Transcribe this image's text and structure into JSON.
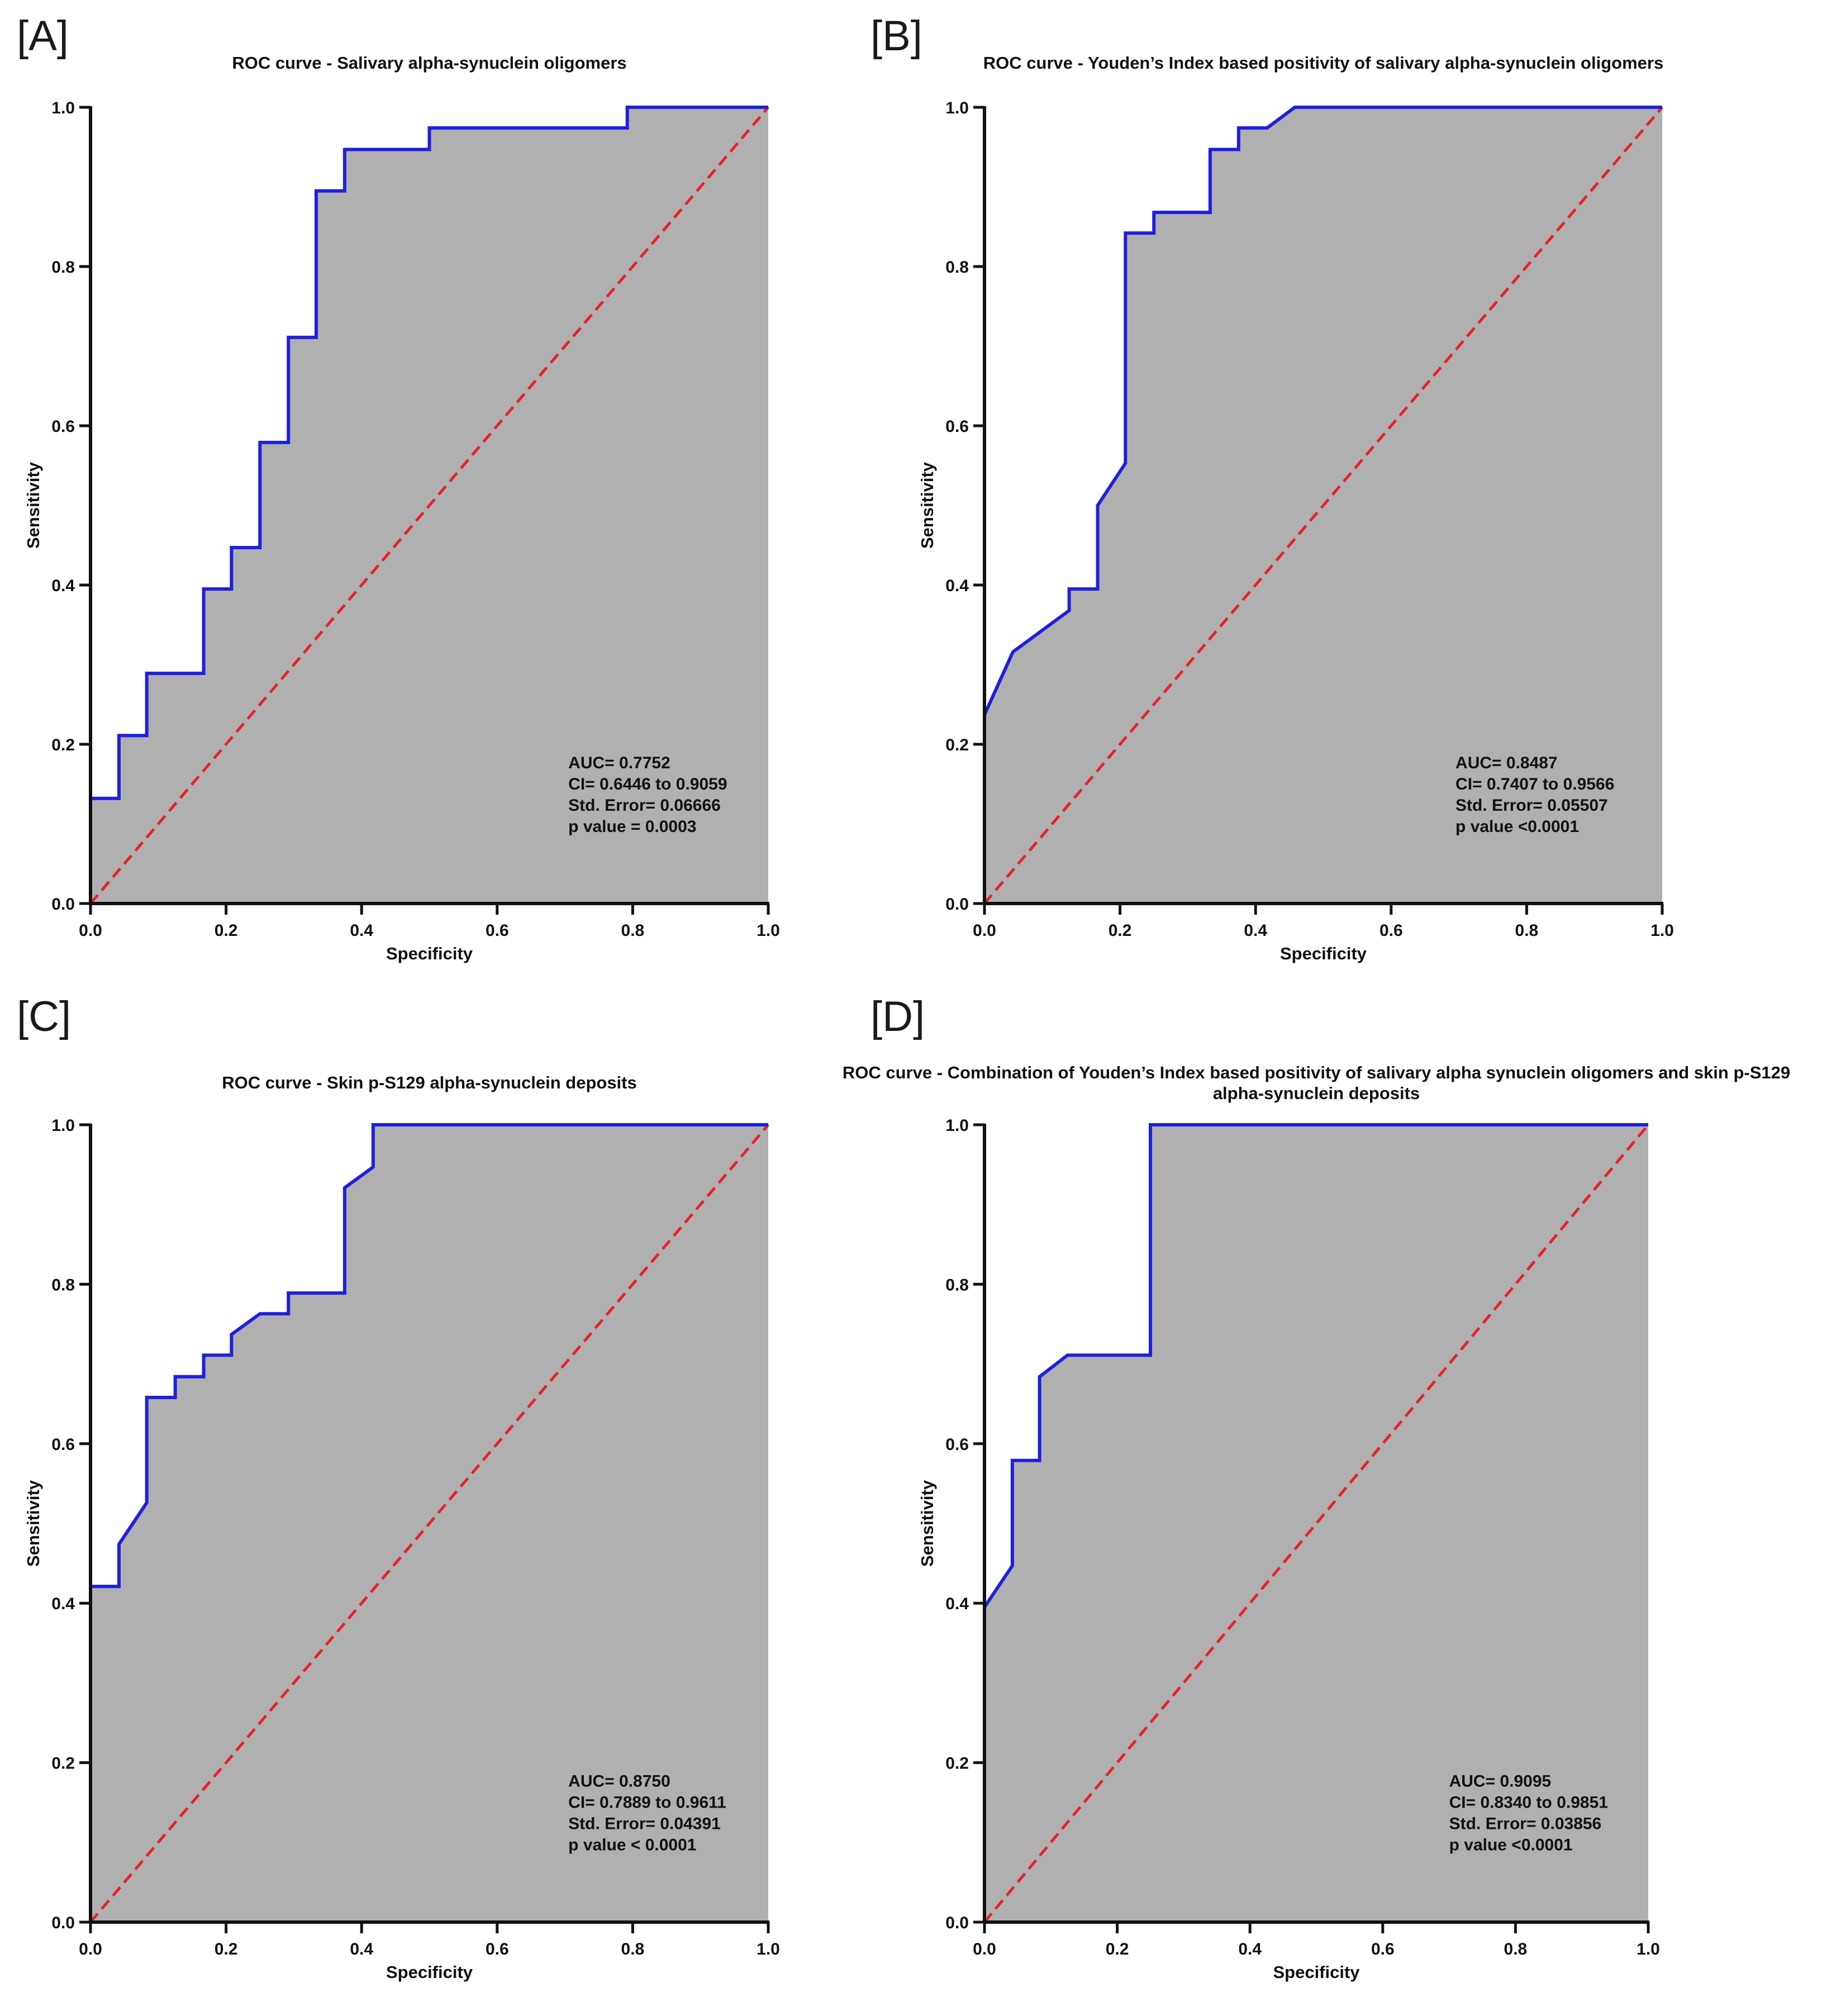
{
  "chart_data": [
    {
      "type": "line",
      "panel_label": "[A]",
      "title": "ROC curve - Salivary alpha-synuclein oligomers",
      "title_line2": "",
      "xlabel": "Specificity",
      "ylabel": "Sensitivity",
      "xlim": [
        0,
        1
      ],
      "ylim": [
        0,
        1
      ],
      "xticks": [
        "0.0",
        "0.2",
        "0.4",
        "0.6",
        "0.8",
        "1.0"
      ],
      "yticks": [
        "0.0",
        "0.2",
        "0.4",
        "0.6",
        "0.8",
        "1.0"
      ],
      "grid": false,
      "curve_color": "#1f1fe0",
      "reference_color": "#e8222b",
      "fill_color": "#b0b0b0",
      "annotation": [
        "AUC= 0.7752",
        "CI= 0.6446 to 0.9059",
        "Std. Error= 0.06666",
        "p value = 0.0003"
      ],
      "x": [
        0,
        0,
        0.042,
        0.042,
        0.083,
        0.083,
        0.167,
        0.167,
        0.208,
        0.208,
        0.25,
        0.25,
        0.292,
        0.292,
        0.333,
        0.333,
        0.375,
        0.375,
        0.5,
        0.5,
        0.792,
        0.792,
        1
      ],
      "y": [
        0,
        0.132,
        0.132,
        0.211,
        0.211,
        0.289,
        0.289,
        0.395,
        0.395,
        0.447,
        0.447,
        0.579,
        0.579,
        0.711,
        0.711,
        0.895,
        0.895,
        0.947,
        0.947,
        0.974,
        0.974,
        1,
        1
      ]
    },
    {
      "type": "line",
      "panel_label": "[B]",
      "title": "ROC curve - Youden’s Index based positivity of salivary alpha-synuclein oligomers",
      "title_line2": "",
      "xlabel": "Specificity",
      "ylabel": "Sensitivity",
      "xlim": [
        0,
        1
      ],
      "ylim": [
        0,
        1
      ],
      "xticks": [
        "0.0",
        "0.2",
        "0.4",
        "0.6",
        "0.8",
        "1.0"
      ],
      "yticks": [
        "0.0",
        "0.2",
        "0.4",
        "0.6",
        "0.8",
        "1.0"
      ],
      "grid": false,
      "curve_color": "#1f1fe0",
      "reference_color": "#e8222b",
      "fill_color": "#b0b0b0",
      "annotation": [
        "AUC= 0.8487",
        "CI= 0.7407 to 0.9566",
        "Std. Error= 0.05507",
        "p value <0.0001"
      ],
      "x": [
        0,
        0,
        0.042,
        0.125,
        0.125,
        0.167,
        0.167,
        0.208,
        0.208,
        0.25,
        0.25,
        0.333,
        0.333,
        0.375,
        0.375,
        0.417,
        0.458,
        1
      ],
      "y": [
        0,
        0.237,
        0.316,
        0.368,
        0.395,
        0.395,
        0.5,
        0.553,
        0.842,
        0.842,
        0.868,
        0.868,
        0.947,
        0.947,
        0.974,
        0.974,
        1,
        1
      ]
    },
    {
      "type": "line",
      "panel_label": "[C]",
      "title": "ROC curve - Skin p-S129 alpha-synuclein deposits",
      "title_line2": "",
      "xlabel": "Specificity",
      "ylabel": "Sensitivity",
      "xlim": [
        0,
        1
      ],
      "ylim": [
        0,
        1
      ],
      "xticks": [
        "0.0",
        "0.2",
        "0.4",
        "0.6",
        "0.8",
        "1.0"
      ],
      "yticks": [
        "0.0",
        "0.2",
        "0.4",
        "0.6",
        "0.8",
        "1.0"
      ],
      "grid": false,
      "curve_color": "#1f1fe0",
      "reference_color": "#e8222b",
      "fill_color": "#b0b0b0",
      "annotation": [
        "AUC= 0.8750",
        "CI= 0.7889 to 0.9611",
        "Std. Error= 0.04391",
        "p value < 0.0001"
      ],
      "x": [
        0,
        0,
        0.042,
        0.042,
        0.083,
        0.083,
        0.125,
        0.125,
        0.167,
        0.167,
        0.208,
        0.208,
        0.25,
        0.292,
        0.292,
        0.375,
        0.375,
        0.417,
        0.417,
        1
      ],
      "y": [
        0,
        0.421,
        0.421,
        0.474,
        0.526,
        0.658,
        0.658,
        0.684,
        0.684,
        0.711,
        0.711,
        0.737,
        0.763,
        0.763,
        0.789,
        0.789,
        0.921,
        0.947,
        1,
        1
      ]
    },
    {
      "type": "line",
      "panel_label": "[D]",
      "title": "ROC curve - Combination of Youden’s Index based positivity of salivary alpha synuclein oligomers and skin p-S129",
      "title_line2": "alpha-synuclein deposits",
      "xlabel": "Specificity",
      "ylabel": "Sensitivity",
      "xlim": [
        0,
        1
      ],
      "ylim": [
        0,
        1
      ],
      "xticks": [
        "0.0",
        "0.2",
        "0.4",
        "0.6",
        "0.8",
        "1.0"
      ],
      "yticks": [
        "0.0",
        "0.2",
        "0.4",
        "0.6",
        "0.8",
        "1.0"
      ],
      "grid": false,
      "curve_color": "#1f1fe0",
      "reference_color": "#e8222b",
      "fill_color": "#b0b0b0",
      "annotation": [
        "AUC= 0.9095",
        "CI= 0.8340 to 0.9851",
        "Std. Error= 0.03856",
        "p value <0.0001"
      ],
      "x": [
        0,
        0,
        0.042,
        0.042,
        0.083,
        0.083,
        0.125,
        0.25,
        0.25,
        1
      ],
      "y": [
        0,
        0.395,
        0.447,
        0.579,
        0.579,
        0.684,
        0.711,
        0.711,
        1,
        1
      ]
    }
  ]
}
